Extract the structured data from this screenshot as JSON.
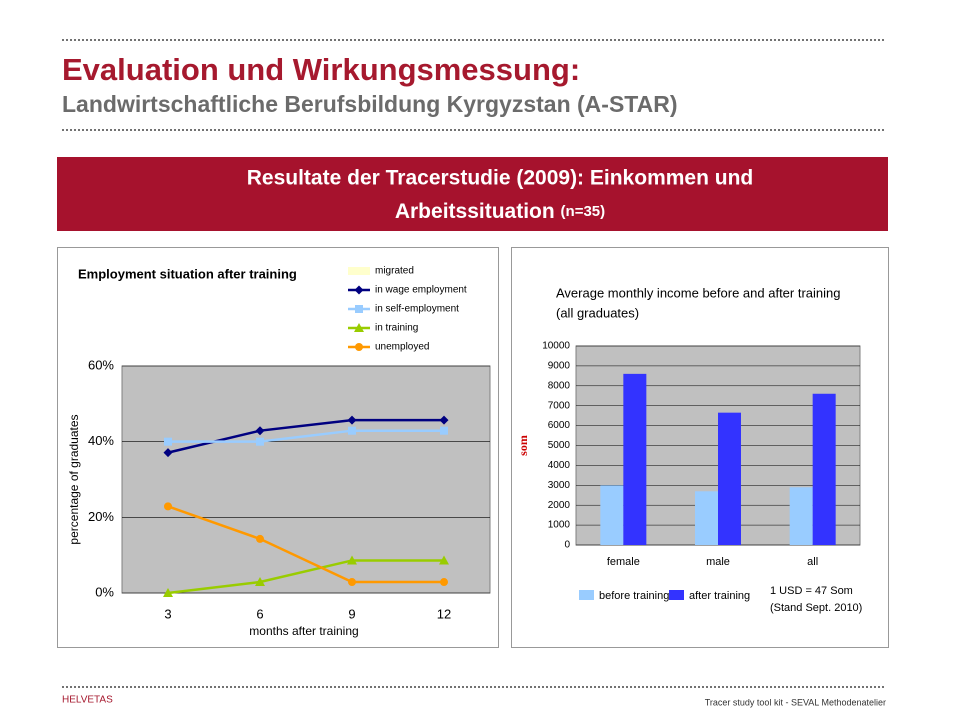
{
  "header": {
    "title": "Evaluation und Wirkungsmessung:",
    "subtitle": "Landwirtschaftliche Berufsbildung Kyrgyzstan (A-STAR)"
  },
  "banner": {
    "lines": [
      "Resultate der Tracerstudie (2009): Einkommen und",
      "Arbeitssituation"
    ],
    "note": "(n=35)"
  },
  "chart_data": [
    {
      "type": "line",
      "title": "Employment situation after training",
      "x_label": "months after training",
      "y_label": "percentage of graduates",
      "categories": [
        "3",
        "6",
        "9",
        "12"
      ],
      "series": [
        {
          "name": "migrated",
          "color": "#ffffcc",
          "marker": "none",
          "values": [
            null,
            null,
            null,
            null
          ]
        },
        {
          "name": "in wage employment",
          "color": "#000080",
          "marker": "diamond",
          "values": [
            37.1,
            42.9,
            45.7,
            45.7
          ]
        },
        {
          "name": "in self-employment",
          "color": "#99ccff",
          "marker": "square",
          "values": [
            40,
            40,
            42.9,
            42.9
          ]
        },
        {
          "name": "in training",
          "color": "#99cc00",
          "marker": "triangle",
          "values": [
            0,
            2.9,
            8.6,
            8.6
          ]
        },
        {
          "name": "unemployed",
          "color": "#ff9900",
          "marker": "circle",
          "values": [
            22.9,
            14.3,
            2.9,
            2.9
          ]
        }
      ],
      "ylim": [
        0,
        60
      ],
      "yticks": [
        {
          "value": 0,
          "label": "0%"
        },
        {
          "value": 20,
          "label": "20%"
        },
        {
          "value": 40,
          "label": "40%"
        },
        {
          "value": 60,
          "label": "60%"
        }
      ],
      "grid": true
    },
    {
      "type": "bar",
      "title": "Average monthly income before and after training",
      "subtitle": "(all graduates)",
      "y_label": "som",
      "categories": [
        "female",
        "male",
        "all"
      ],
      "series": [
        {
          "name": "before training",
          "color": "#99ccff",
          "values": [
            3000,
            2700,
            2900
          ]
        },
        {
          "name": "after training",
          "color": "#3333ff",
          "values": [
            8600,
            6650,
            7600
          ]
        }
      ],
      "ylim": [
        0,
        10000
      ],
      "yticks": [
        0,
        1000,
        2000,
        3000,
        4000,
        5000,
        6000,
        7000,
        8000,
        9000,
        10000
      ],
      "grid": true,
      "annotation": [
        "1 USD = 47 Som",
        "(Stand Sept.  2010)"
      ]
    }
  ],
  "footer": {
    "left": "HELVETAS",
    "right": "Tracer study tool kit - SEVAL Methodenatelier"
  }
}
